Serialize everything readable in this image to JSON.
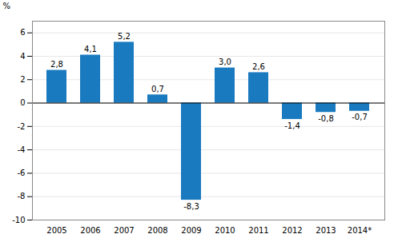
{
  "chart_data": {
    "type": "bar",
    "categories": [
      "2005",
      "2006",
      "2007",
      "2008",
      "2009",
      "2010",
      "2011",
      "2012",
      "2013",
      "2014*"
    ],
    "values": [
      2.8,
      4.1,
      5.2,
      0.7,
      -8.3,
      3.0,
      2.6,
      -1.4,
      -0.8,
      -0.7
    ],
    "value_labels": [
      "2,8",
      "4,1",
      "5,2",
      "0,7",
      "-8,3",
      "3,0",
      "2,6",
      "-1,4",
      "-0,8",
      "-0,7"
    ],
    "data_labels": true,
    "color": "#1a7abf",
    "ylabel": "%",
    "ylim": [
      -10,
      7
    ],
    "yticks": [
      -10,
      -8,
      -6,
      -4,
      -2,
      0,
      2,
      4,
      6
    ],
    "grid": true
  }
}
